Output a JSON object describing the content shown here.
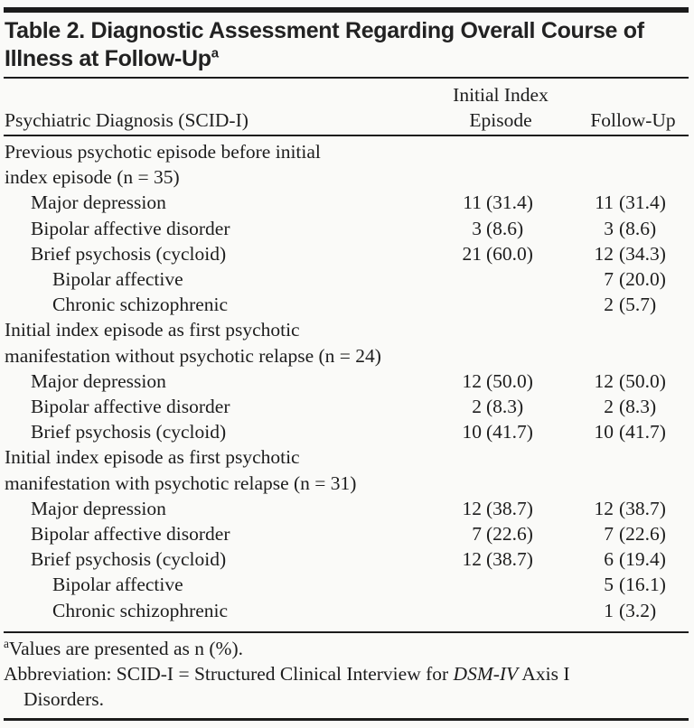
{
  "table": {
    "title_line1": "Table 2. Diagnostic Assessment Regarding Overall Course of",
    "title_line2": "Illness at Follow-Up",
    "title_sup": "a",
    "columns": {
      "stub": "Psychiatric Diagnosis (SCID-I)",
      "col1_line1": "Initial Index",
      "col1_line2": "Episode",
      "col2": "Follow-Up"
    },
    "rows": [
      {
        "label": "Previous psychotic episode before initial",
        "indent": 0,
        "initial_n": "",
        "initial_pct": "",
        "followup_n": "",
        "followup_pct": ""
      },
      {
        "label": "index episode (n = 35)",
        "indent": 0,
        "initial_n": "",
        "initial_pct": "",
        "followup_n": "",
        "followup_pct": ""
      },
      {
        "label": "Major depression",
        "indent": 1,
        "initial_n": "11",
        "initial_pct": "(31.4)",
        "followup_n": "11",
        "followup_pct": "(31.4)"
      },
      {
        "label": "Bipolar affective disorder",
        "indent": 1,
        "initial_n": "3",
        "initial_pct": "(8.6)",
        "followup_n": "3",
        "followup_pct": "(8.6)"
      },
      {
        "label": "Brief psychosis (cycloid)",
        "indent": 1,
        "initial_n": "21",
        "initial_pct": "(60.0)",
        "followup_n": "12",
        "followup_pct": "(34.3)"
      },
      {
        "label": "Bipolar affective",
        "indent": 2,
        "initial_n": "",
        "initial_pct": "",
        "followup_n": "7",
        "followup_pct": "(20.0)"
      },
      {
        "label": "Chronic schizophrenic",
        "indent": 2,
        "initial_n": "",
        "initial_pct": "",
        "followup_n": "2",
        "followup_pct": "(5.7)"
      },
      {
        "label": "Initial index episode as first psychotic",
        "indent": 0,
        "initial_n": "",
        "initial_pct": "",
        "followup_n": "",
        "followup_pct": ""
      },
      {
        "label": "manifestation without psychotic relapse (n = 24)",
        "indent": 0,
        "initial_n": "",
        "initial_pct": "",
        "followup_n": "",
        "followup_pct": ""
      },
      {
        "label": "Major depression",
        "indent": 1,
        "initial_n": "12",
        "initial_pct": "(50.0)",
        "followup_n": "12",
        "followup_pct": "(50.0)"
      },
      {
        "label": "Bipolar affective disorder",
        "indent": 1,
        "initial_n": "2",
        "initial_pct": "(8.3)",
        "followup_n": "2",
        "followup_pct": "(8.3)"
      },
      {
        "label": "Brief psychosis (cycloid)",
        "indent": 1,
        "initial_n": "10",
        "initial_pct": "(41.7)",
        "followup_n": "10",
        "followup_pct": "(41.7)"
      },
      {
        "label": "Initial index episode as first psychotic",
        "indent": 0,
        "initial_n": "",
        "initial_pct": "",
        "followup_n": "",
        "followup_pct": ""
      },
      {
        "label": "manifestation with psychotic relapse (n = 31)",
        "indent": 0,
        "initial_n": "",
        "initial_pct": "",
        "followup_n": "",
        "followup_pct": ""
      },
      {
        "label": "Major depression",
        "indent": 1,
        "initial_n": "12",
        "initial_pct": "(38.7)",
        "followup_n": "12",
        "followup_pct": "(38.7)"
      },
      {
        "label": "Bipolar affective disorder",
        "indent": 1,
        "initial_n": "7",
        "initial_pct": "(22.6)",
        "followup_n": "7",
        "followup_pct": "(22.6)"
      },
      {
        "label": "Brief psychosis (cycloid)",
        "indent": 1,
        "initial_n": "12",
        "initial_pct": "(38.7)",
        "followup_n": "6",
        "followup_pct": "(19.4)"
      },
      {
        "label": "Bipolar affective",
        "indent": 2,
        "initial_n": "",
        "initial_pct": "",
        "followup_n": "5",
        "followup_pct": "(16.1)"
      },
      {
        "label": "Chronic schizophrenic",
        "indent": 2,
        "initial_n": "",
        "initial_pct": "",
        "followup_n": "1",
        "followup_pct": "(3.2)"
      }
    ],
    "footnotes": {
      "a_marker": "a",
      "a_text": "Values are presented as n (%).",
      "abbrev_pre": "Abbreviation: SCID-I = Structured Clinical Interview for ",
      "abbrev_italic": "DSM-IV",
      "abbrev_post": " Axis I",
      "abbrev_cont": "Disorders."
    }
  }
}
